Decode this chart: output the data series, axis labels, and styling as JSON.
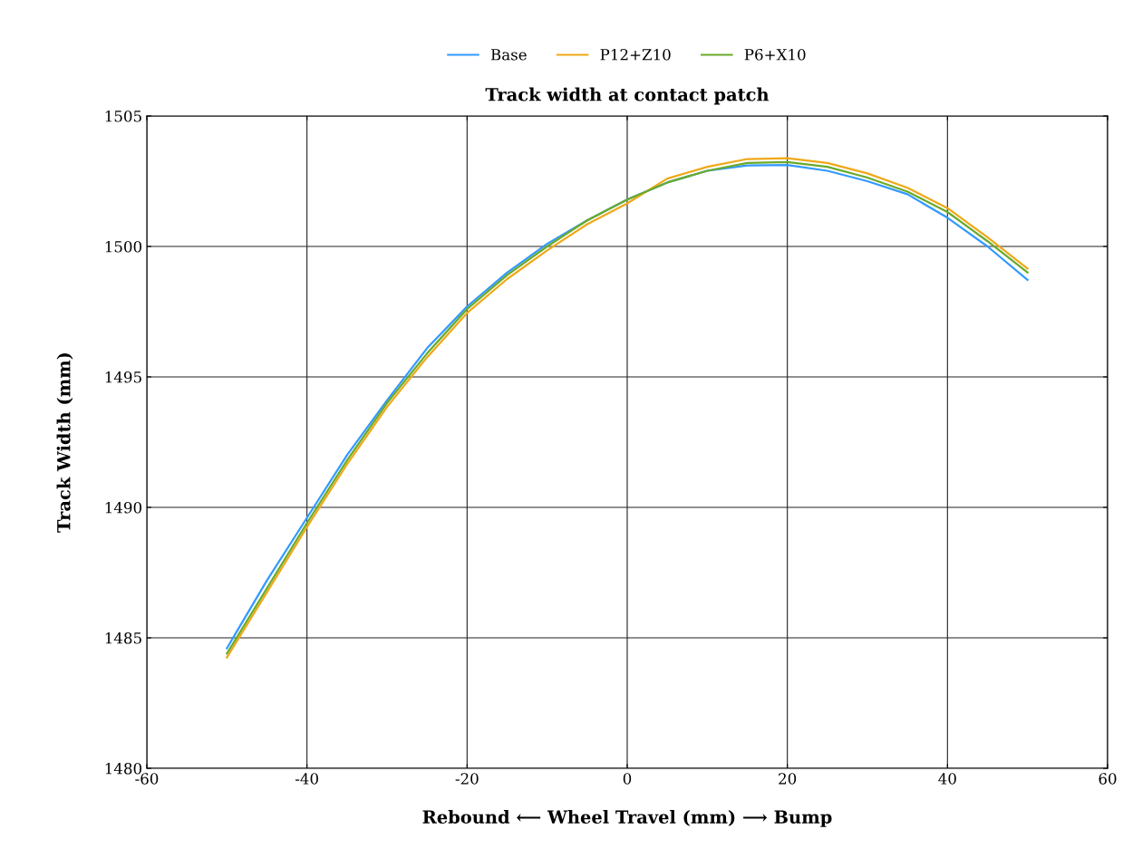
{
  "chart_data": {
    "type": "line",
    "title": "Track width at contact patch",
    "xlabel": "Rebound ⟵ Wheel Travel (mm) ⟶ Bump",
    "ylabel": "Track Width (mm)",
    "x": [
      -50,
      -45,
      -40,
      -35,
      -30,
      -25,
      -20,
      -15,
      -10,
      -5,
      0,
      5,
      10,
      15,
      20,
      25,
      30,
      35,
      40,
      45,
      50
    ],
    "series": [
      {
        "name": "Base",
        "color": "#3399ff",
        "values": [
          1484.6,
          1487.2,
          1489.6,
          1492.0,
          1494.1,
          1496.1,
          1497.7,
          1499.0,
          1500.1,
          1501.0,
          1501.8,
          1502.45,
          1502.9,
          1503.1,
          1503.12,
          1502.9,
          1502.5,
          1502.0,
          1501.1,
          1500.0,
          1498.72
        ]
      },
      {
        "name": "P12+Z10",
        "color": "#f0a818",
        "values": [
          1484.25,
          1486.75,
          1489.25,
          1491.65,
          1493.85,
          1495.75,
          1497.45,
          1498.75,
          1499.85,
          1500.85,
          1501.65,
          1502.6,
          1503.05,
          1503.35,
          1503.38,
          1503.2,
          1502.8,
          1502.25,
          1501.47,
          1500.35,
          1499.15
        ]
      },
      {
        "name": "P6+X10",
        "color": "#6aaa2a",
        "values": [
          1484.4,
          1486.9,
          1489.4,
          1491.8,
          1494.0,
          1495.9,
          1497.6,
          1498.9,
          1500.0,
          1501.0,
          1501.8,
          1502.45,
          1502.9,
          1503.2,
          1503.23,
          1503.05,
          1502.64,
          1502.1,
          1501.32,
          1500.2,
          1499.0
        ]
      }
    ],
    "xlim": [
      -60,
      60
    ],
    "xticks": [
      -60,
      -40,
      -20,
      0,
      20,
      40,
      60
    ],
    "ylim": [
      1480,
      1505
    ],
    "yticks": [
      1480,
      1485,
      1490,
      1495,
      1500,
      1505
    ],
    "grid": true,
    "legend": "top",
    "marker": "none",
    "line_style": "solid"
  }
}
